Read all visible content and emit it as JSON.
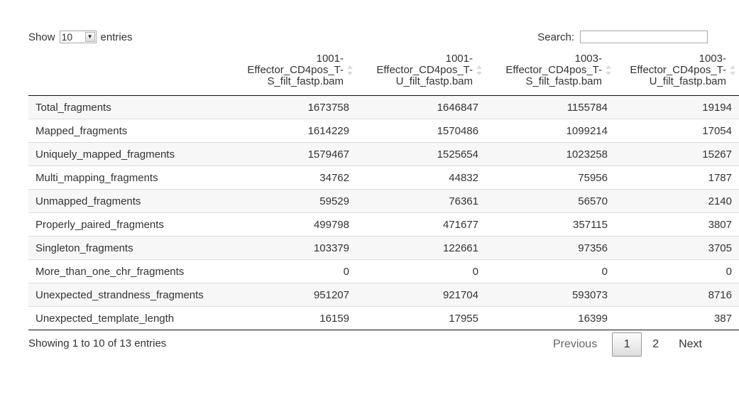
{
  "length_control": {
    "show_label": "Show",
    "selected": "10",
    "entries_label": "entries"
  },
  "search": {
    "label": "Search:",
    "value": ""
  },
  "table": {
    "columns": [
      "",
      {
        "line1": "1001-",
        "line2": "Effector_CD4pos_T-",
        "line3": "S_filt_fastp.bam"
      },
      {
        "line1": "1001-",
        "line2": "Effector_CD4pos_T-",
        "line3": "U_filt_fastp.bam"
      },
      {
        "line1": "1003-",
        "line2": "Effector_CD4pos_T-",
        "line3": "S_filt_fastp.bam"
      },
      {
        "line1": "1003-",
        "line2": "Effector_CD4pos_T-",
        "line3": "U_filt_fastp.bam"
      }
    ],
    "rows": [
      [
        "Total_fragments",
        "1673758",
        "1646847",
        "1155784",
        "19194"
      ],
      [
        "Mapped_fragments",
        "1614229",
        "1570486",
        "1099214",
        "17054"
      ],
      [
        "Uniquely_mapped_fragments",
        "1579467",
        "1525654",
        "1023258",
        "15267"
      ],
      [
        "Multi_mapping_fragments",
        "34762",
        "44832",
        "75956",
        "1787"
      ],
      [
        "Unmapped_fragments",
        "59529",
        "76361",
        "56570",
        "2140"
      ],
      [
        "Properly_paired_fragments",
        "499798",
        "471677",
        "357115",
        "3807"
      ],
      [
        "Singleton_fragments",
        "103379",
        "122661",
        "97356",
        "3705"
      ],
      [
        "More_than_one_chr_fragments",
        "0",
        "0",
        "0",
        "0"
      ],
      [
        "Unexpected_strandness_fragments",
        "951207",
        "921704",
        "593073",
        "8716"
      ],
      [
        "Unexpected_template_length",
        "16159",
        "17955",
        "16399",
        "387"
      ]
    ]
  },
  "info": "Showing 1 to 10 of 13 entries",
  "pagination": {
    "previous": "Previous",
    "pages": [
      "1",
      "2"
    ],
    "current": "1",
    "next": "Next"
  }
}
